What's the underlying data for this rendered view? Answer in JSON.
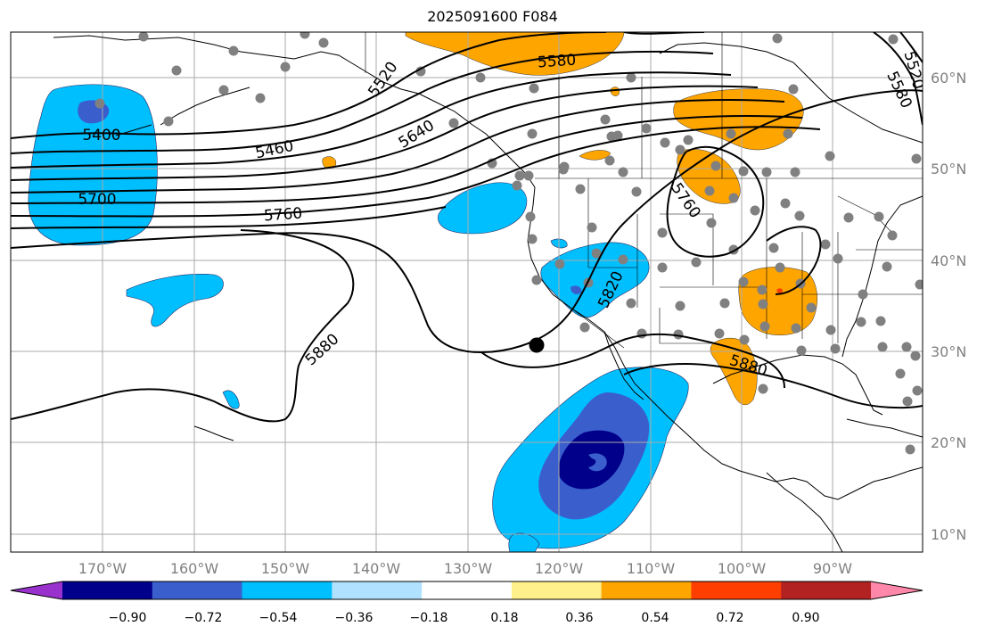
{
  "title": "2025091600 F084",
  "lon_labels": [
    "170°W",
    "160°W",
    "150°W",
    "140°W",
    "130°W",
    "120°W",
    "110°W",
    "100°W",
    "90°W"
  ],
  "lat_labels": [
    "60°N",
    "50°N",
    "40°N",
    "30°N",
    "20°N",
    "10°N"
  ],
  "contour_labels": [
    "5400",
    "5460",
    "5520",
    "5580",
    "5640",
    "5700",
    "5760",
    "5820",
    "5880",
    "5880",
    "5760",
    "5580",
    "5520"
  ],
  "colorbar": {
    "ticks": [
      "−0.90",
      "−0.72",
      "−0.54",
      "−0.36",
      "−0.18",
      "0.18",
      "0.36",
      "0.54",
      "0.72",
      "0.90"
    ],
    "colors": [
      "#9932cc",
      "#00008b",
      "#3a5fcd",
      "#00bfff",
      "#b0e2ff",
      "#ffffff",
      "#fff08c",
      "#ffa500",
      "#ff3e00",
      "#b22222",
      "#ff88aa"
    ]
  },
  "fill_colors": {
    "strong_negative": "#00008b",
    "mid_negative": "#3a5fcd",
    "weak_negative": "#00bfff",
    "positive": "#ffa500",
    "strong_positive": "#ff3e00"
  }
}
